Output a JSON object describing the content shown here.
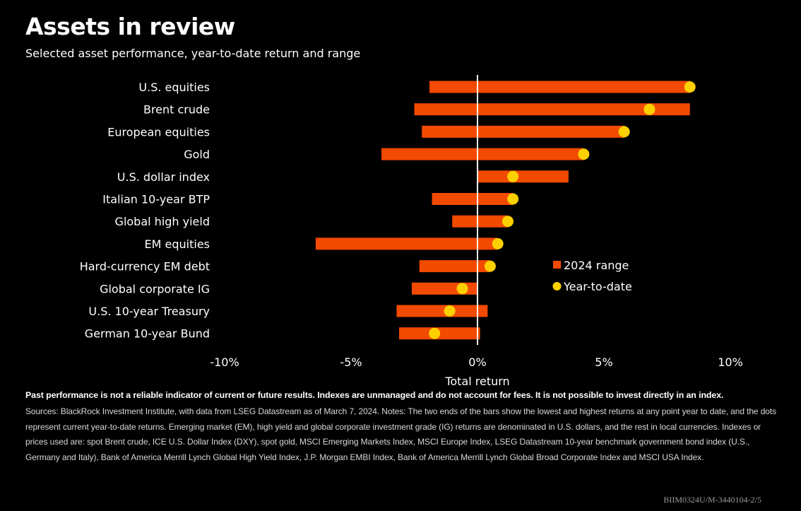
{
  "title": "Assets in review",
  "subtitle": "Selected asset performance, year-to-date return and range",
  "footer": {
    "disclaimer": "Past performance is not a reliable indicator of current or future results. Indexes are unmanaged and do not account for fees. It is not possible to invest directly in an index.",
    "notes": "Sources: BlackRock Investment Institute, with data from LSEG Datastream as of March 7, 2024. Notes: The two ends of the bars show the lowest and highest returns at any point year to date, and the dots represent current year-to-date returns. Emerging market (EM), high yield and global corporate investment grade (IG) returns are denominated in U.S. dollars, and the rest in local currencies. Indexes or prices used are: spot Brent crude, ICE U.S. Dollar Index (DXY), spot gold, MSCI Emerging Markets Index, MSCI Europe Index, LSEG Datastream 10-year benchmark government bond index (U.S., Germany and Italy), Bank of America Merrill Lynch Global High Yield Index, J.P. Morgan EMBI Index, Bank of America Merrill Lynch Global Broad Corporate Index and MSCI USA Index.",
    "code": "BIIM0324U/M-3440104-2/5"
  },
  "colors": {
    "background": "#000000",
    "range_bar": "#f24a00",
    "ytd_dot": "#ffd000",
    "text": "#ffffff",
    "zero_line": "#ffffff"
  },
  "chart_data": {
    "type": "bar",
    "orientation": "horizontal",
    "xlabel": "Total return",
    "xlim": [
      -10,
      10
    ],
    "xticks": [
      -10,
      -5,
      0,
      5,
      10
    ],
    "xtick_labels": [
      "-10%",
      "-5%",
      "0%",
      "5%",
      "10%"
    ],
    "legend": {
      "placement": "right",
      "entries": [
        {
          "label": "2024 range",
          "marker": "square"
        },
        {
          "label": "Year-to-date",
          "marker": "circle"
        }
      ]
    },
    "categories": [
      "U.S. equities",
      "Brent crude",
      "European equities",
      "Gold",
      "U.S. dollar index",
      "Italian 10-year BTP",
      "Global high yield",
      "EM equities",
      "Hard-currency EM debt",
      "Global corporate IG",
      "U.S. 10-year Treasury",
      "German 10-year Bund"
    ],
    "series": [
      {
        "name": "2024 range",
        "low": [
          -1.9,
          -2.5,
          -2.2,
          -3.8,
          0.0,
          -1.8,
          -1.0,
          -6.4,
          -2.3,
          -2.6,
          -3.2,
          -3.1
        ],
        "high": [
          8.4,
          8.4,
          5.8,
          4.2,
          3.6,
          1.4,
          1.2,
          0.8,
          0.5,
          0.0,
          0.4,
          0.1
        ]
      },
      {
        "name": "Year-to-date",
        "values": [
          8.4,
          6.8,
          5.8,
          4.2,
          1.4,
          1.4,
          1.2,
          0.8,
          0.5,
          -0.6,
          -1.1,
          -1.7
        ]
      }
    ]
  }
}
